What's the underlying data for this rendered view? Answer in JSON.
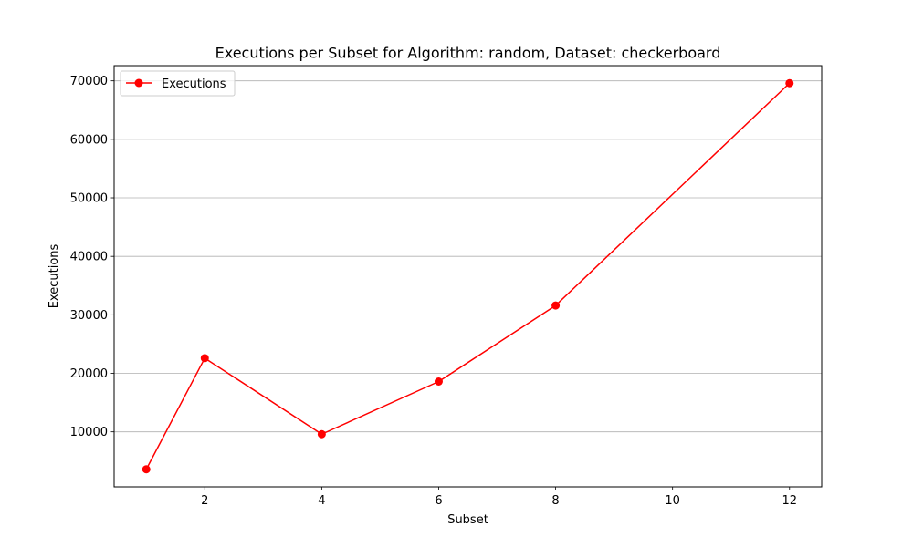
{
  "chart_data": {
    "type": "line",
    "title": "Executions per Subset for Algorithm: random, Dataset: checkerboard",
    "xlabel": "Subset",
    "ylabel": "Executions",
    "x": [
      1,
      2,
      4,
      6,
      8,
      12
    ],
    "series": [
      {
        "name": "Executions",
        "color": "#ff0000",
        "marker": "circle",
        "values": [
          3600,
          22600,
          9600,
          18600,
          31600,
          69600
        ]
      }
    ],
    "xlim": [
      0.45,
      12.55
    ],
    "ylim": [
      600,
      72600
    ],
    "xticks": [
      2,
      4,
      6,
      8,
      10,
      12
    ],
    "yticks": [
      10000,
      20000,
      30000,
      40000,
      50000,
      60000,
      70000
    ],
    "grid": "horizontal",
    "legend_position": "top-left"
  }
}
